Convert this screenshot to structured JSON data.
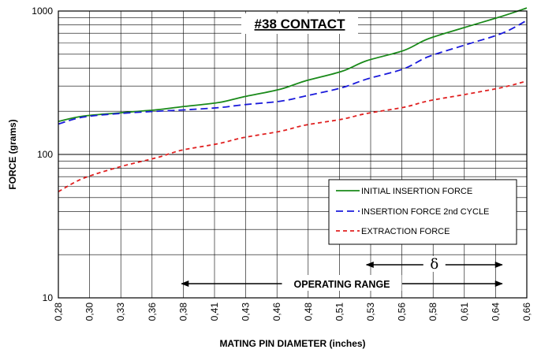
{
  "chart_data": {
    "type": "line",
    "title": "#38 CONTACT",
    "xlabel": "MATING PIN DIAMETER (inches)",
    "ylabel": "FORCE (grams)",
    "y_scale": "log",
    "ylim": [
      10,
      1000
    ],
    "xlim": [
      0.28,
      0.66
    ],
    "y_tick_labels": [
      "10",
      "100",
      "1000"
    ],
    "x_tick_labels": [
      "0,28",
      "0,30",
      "0,33",
      "0,36",
      "0,38",
      "0,41",
      "0,43",
      "0,46",
      "0,48",
      "0,51",
      "0,53",
      "0,56",
      "0,58",
      "0,61",
      "0,64",
      "0,66"
    ],
    "grid": true,
    "legend_position": "right, mid-lower",
    "series": [
      {
        "name": "INITIAL INSERTION FORCE",
        "color": "#1a8a1a",
        "dash": "solid",
        "x": [
          0.28,
          0.3,
          0.33,
          0.36,
          0.38,
          0.41,
          0.43,
          0.46,
          0.48,
          0.51,
          0.53,
          0.56,
          0.58,
          0.61,
          0.64,
          0.66
        ],
        "y": [
          170,
          185,
          195,
          205,
          215,
          230,
          252,
          285,
          325,
          380,
          450,
          530,
          640,
          770,
          920,
          1050
        ]
      },
      {
        "name": "INSERTION FORCE 2nd CYCLE",
        "color": "#1a1adb",
        "dash": "long",
        "x": [
          0.28,
          0.3,
          0.33,
          0.36,
          0.38,
          0.41,
          0.43,
          0.46,
          0.48,
          0.51,
          0.53,
          0.56,
          0.58,
          0.61,
          0.64,
          0.66
        ],
        "y": [
          163,
          182,
          193,
          200,
          204,
          212,
          222,
          235,
          255,
          292,
          335,
          395,
          480,
          580,
          700,
          860
        ]
      },
      {
        "name": "EXTRACTION FORCE",
        "color": "#e02020",
        "dash": "short",
        "x": [
          0.28,
          0.3,
          0.33,
          0.36,
          0.38,
          0.41,
          0.43,
          0.46,
          0.48,
          0.51,
          0.53,
          0.56,
          0.58,
          0.61,
          0.64,
          0.66
        ],
        "y": [
          55,
          68,
          82,
          95,
          107,
          119,
          131,
          145,
          160,
          176,
          193,
          213,
          236,
          262,
          293,
          325
        ]
      }
    ],
    "annotations": {
      "operating_range": {
        "label": "OPERATING RANGE",
        "from": 0.38,
        "to": 0.64
      },
      "delta": {
        "label": "δ",
        "from": 0.53,
        "to": 0.64
      }
    }
  }
}
